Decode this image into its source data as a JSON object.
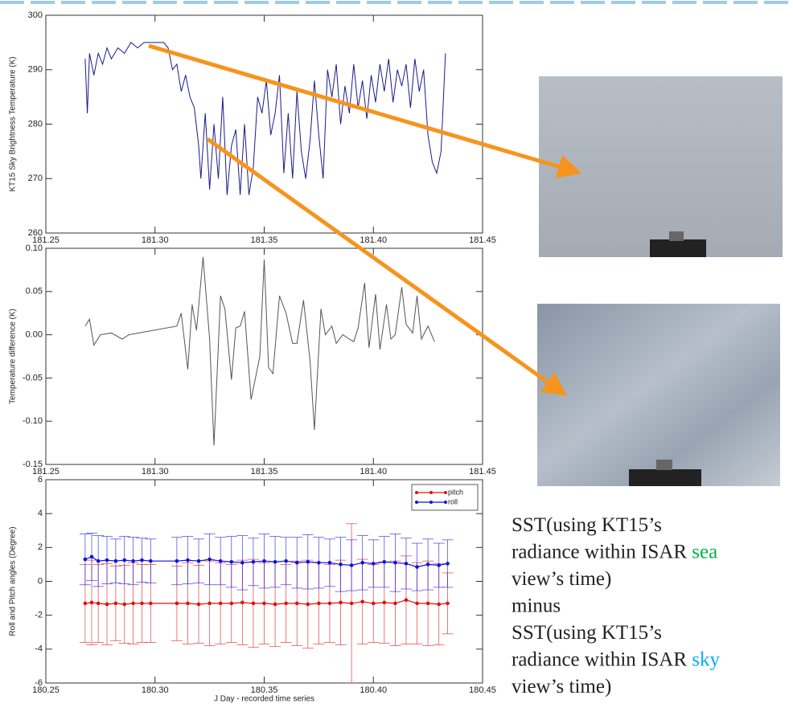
{
  "chart_data": [
    {
      "type": "line",
      "y_label": "KT15 Sky Brightness Temperature (K)",
      "xlim": [
        181.25,
        181.45
      ],
      "xticks": [
        181.25,
        {
          "value": 181.3,
          "label": "181.30"
        },
        181.35,
        {
          "value": 181.4,
          "label": "181.40"
        },
        181.45
      ],
      "ylim": [
        260,
        300
      ],
      "yticks": [
        260,
        270,
        280,
        290,
        300
      ],
      "x": [
        181.268,
        181.269,
        181.27,
        181.272,
        181.274,
        181.276,
        181.278,
        181.28,
        181.283,
        181.286,
        181.289,
        181.292,
        181.295,
        181.298,
        181.301,
        181.304,
        181.306,
        181.308,
        181.31,
        181.312,
        181.314,
        181.316,
        181.318,
        181.32,
        181.321,
        181.323,
        181.325,
        181.327,
        181.329,
        181.331,
        181.333,
        181.335,
        181.337,
        181.339,
        181.341,
        181.343,
        181.345,
        181.347,
        181.349,
        181.351,
        181.353,
        181.355,
        181.357,
        181.359,
        181.361,
        181.363,
        181.365,
        181.367,
        181.369,
        181.371,
        181.373,
        181.375,
        181.377,
        181.379,
        181.381,
        181.383,
        181.385,
        181.387,
        181.389,
        181.391,
        181.393,
        181.395,
        181.397,
        181.399,
        181.401,
        181.403,
        181.405,
        181.407,
        181.409,
        181.411,
        181.413,
        181.415,
        181.417,
        181.419,
        181.421,
        181.423,
        181.425,
        181.427,
        181.429,
        181.431,
        181.433
      ],
      "series": [
        {
          "color": "#1a1a8c",
          "values": [
            292,
            282,
            293,
            289,
            293,
            291,
            294,
            292,
            294,
            293,
            295,
            294,
            295,
            295,
            295,
            295,
            294,
            290,
            291,
            286,
            289,
            285,
            283,
            276,
            270,
            282,
            268,
            280,
            270,
            285,
            267,
            276,
            279,
            267,
            280,
            267,
            272,
            285,
            282,
            288,
            278,
            282,
            289,
            271,
            282,
            270,
            286,
            275,
            270,
            277,
            288,
            278,
            270,
            290,
            285,
            291,
            280,
            287,
            282,
            291,
            283,
            288,
            281,
            289,
            284,
            291,
            286,
            292,
            284,
            290,
            287,
            291,
            283,
            292,
            286,
            290,
            278,
            273,
            271,
            275,
            293
          ]
        }
      ]
    },
    {
      "type": "line",
      "y_label": "Temperature difference (K)",
      "xlim": [
        181.25,
        181.45
      ],
      "xticks": [
        181.25,
        {
          "value": 181.3,
          "label": "181.30"
        },
        181.35,
        {
          "value": 181.4,
          "label": "181.40"
        },
        181.45
      ],
      "ylim": [
        -0.15,
        0.1
      ],
      "yticks": [
        -0.15,
        {
          "value": -0.1,
          "label": "-0.10"
        },
        -0.05,
        {
          "value": 0,
          "label": "0.00"
        },
        0.05,
        {
          "value": 0.1,
          "label": "0.10"
        }
      ],
      "x": [
        181.268,
        181.27,
        181.272,
        181.275,
        181.28,
        181.285,
        181.288,
        181.31,
        181.312,
        181.315,
        181.317,
        181.319,
        181.322,
        181.325,
        181.327,
        181.33,
        181.332,
        181.335,
        181.337,
        181.339,
        181.341,
        181.344,
        181.348,
        181.35,
        181.352,
        181.354,
        181.357,
        181.36,
        181.363,
        181.365,
        181.368,
        181.371,
        181.373,
        181.376,
        181.378,
        181.381,
        181.383,
        181.386,
        181.389,
        181.391,
        181.393,
        181.396,
        181.398,
        181.401,
        181.403,
        181.406,
        181.408,
        181.41,
        181.413,
        181.415,
        181.418,
        181.42,
        181.422,
        181.425,
        181.428
      ],
      "series": [
        {
          "color": "#555555",
          "values": [
            0.01,
            0.018,
            -0.012,
            0.0,
            0.002,
            -0.005,
            0.0,
            0.01,
            0.025,
            -0.04,
            0.035,
            0.005,
            0.09,
            -0.005,
            -0.128,
            0.045,
            0.03,
            -0.052,
            0.008,
            0.01,
            0.027,
            -0.075,
            -0.025,
            0.087,
            -0.038,
            -0.045,
            0.045,
            0.025,
            -0.01,
            -0.01,
            0.04,
            -0.03,
            -0.11,
            0.03,
            0.0,
            0.01,
            -0.01,
            0.0,
            -0.005,
            -0.008,
            0.008,
            0.06,
            -0.015,
            0.047,
            -0.017,
            0.035,
            -0.005,
            0.0,
            0.055,
            0.012,
            0.002,
            0.045,
            -0.005,
            0.01,
            -0.008
          ]
        }
      ]
    },
    {
      "type": "errorbar",
      "y_label": "Roll and Pitch angles (Degree)",
      "x_label": "J Day - recorded time series",
      "legend": "upper right",
      "xlim": [
        180.25,
        180.45
      ],
      "xticks": [
        180.25,
        {
          "value": 180.3,
          "label": "180.30"
        },
        180.35,
        {
          "value": 180.4,
          "label": "180.40"
        },
        180.45
      ],
      "ylim": [
        -6,
        6
      ],
      "yticks": [
        -6,
        -4,
        -2,
        0,
        2,
        4,
        6
      ],
      "x": [
        180.268,
        180.271,
        180.274,
        180.278,
        180.282,
        180.286,
        180.29,
        180.294,
        180.298,
        180.31,
        180.315,
        180.32,
        180.325,
        180.33,
        180.335,
        180.34,
        180.345,
        180.35,
        180.355,
        180.36,
        180.365,
        180.37,
        180.375,
        180.38,
        180.385,
        180.39,
        180.395,
        180.4,
        180.405,
        180.41,
        180.415,
        180.42,
        180.425,
        180.43,
        180.434
      ],
      "series": [
        {
          "name": "pitch",
          "color": "#e01010",
          "values": [
            -1.3,
            -1.25,
            -1.3,
            -1.35,
            -1.3,
            -1.35,
            -1.3,
            -1.3,
            -1.3,
            -1.3,
            -1.3,
            -1.35,
            -1.3,
            -1.3,
            -1.3,
            -1.25,
            -1.3,
            -1.3,
            -1.35,
            -1.3,
            -1.3,
            -1.35,
            -1.3,
            -1.3,
            -1.25,
            -1.3,
            -1.2,
            -1.3,
            -1.25,
            -1.3,
            -1.1,
            -1.3,
            -1.3,
            -1.35,
            -1.3
          ],
          "errors": [
            2.3,
            2.5,
            2.3,
            2.4,
            2.2,
            2.3,
            2.4,
            2.3,
            2.3,
            2.2,
            2.4,
            2.3,
            2.5,
            2.4,
            2.3,
            2.5,
            2.6,
            2.4,
            2.5,
            2.3,
            2.5,
            2.6,
            2.4,
            2.3,
            2.5,
            4.7,
            2.5,
            2.3,
            2.4,
            2.5,
            2.6,
            2.4,
            2.5,
            2.4,
            1.8
          ]
        },
        {
          "name": "roll",
          "color": "#1010e0",
          "values": [
            1.3,
            1.45,
            1.2,
            1.25,
            1.2,
            1.25,
            1.2,
            1.25,
            1.2,
            1.2,
            1.25,
            1.2,
            1.3,
            1.2,
            1.15,
            1.1,
            1.15,
            1.2,
            1.15,
            1.2,
            1.1,
            1.15,
            1.1,
            1.1,
            1.0,
            0.95,
            1.1,
            1.05,
            1.15,
            1.1,
            1.05,
            0.85,
            1.0,
            0.95,
            1.05
          ],
          "errors": [
            1.5,
            1.4,
            1.5,
            1.4,
            1.3,
            1.4,
            1.4,
            1.3,
            1.3,
            1.4,
            1.4,
            1.3,
            1.5,
            1.4,
            1.5,
            1.6,
            1.4,
            1.6,
            1.5,
            1.4,
            1.5,
            1.6,
            1.5,
            1.4,
            1.6,
            1.5,
            1.6,
            1.4,
            1.5,
            1.7,
            1.5,
            1.4,
            1.5,
            1.3,
            1.4
          ]
        }
      ]
    }
  ],
  "caption": {
    "lines": [
      [
        {
          "text": "SST(using KT15’s"
        }
      ],
      [
        {
          "text": "radiance within ISAR "
        },
        {
          "text": "sea",
          "color": "#00b050"
        }
      ],
      [
        {
          "text": "view’s time)"
        }
      ],
      [
        {
          "text": "minus"
        }
      ],
      [
        {
          "text": "SST(using KT15’s"
        }
      ],
      [
        {
          "text": "radiance within ISAR "
        },
        {
          "text": "sky",
          "color": "#00b0f0"
        }
      ],
      [
        {
          "text": "view’s time)"
        }
      ]
    ]
  }
}
